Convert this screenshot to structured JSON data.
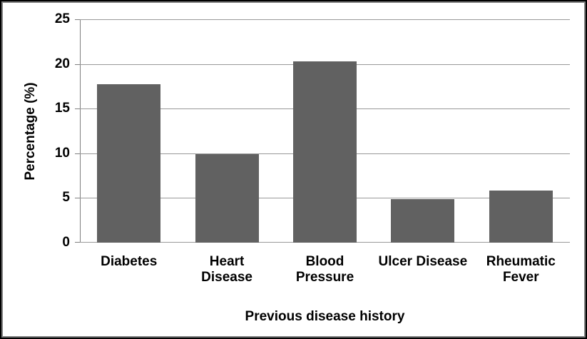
{
  "chart_data": {
    "type": "bar",
    "title": "",
    "categories": [
      "Diabetes",
      "Heart Disease",
      "Blood Pressure",
      "Ulcer Disease",
      "Rheumatic Fever"
    ],
    "values": [
      17.7,
      9.9,
      20.3,
      4.9,
      5.8
    ],
    "category_label_lines": [
      "Diabetes",
      "Heart\nDisease",
      "Blood\nPressure",
      "Ulcer Disease",
      "Rheumatic\nFever"
    ],
    "xlabel": "Previous disease history",
    "ylabel": "Percentage (%)",
    "ylim": [
      0,
      25
    ],
    "yticks": [
      0,
      5,
      10,
      15,
      20,
      25
    ],
    "grid": true,
    "legend": "none",
    "colors": {
      "bar_fill": "#616161",
      "gridline": "#999999",
      "axis_line": "#808080",
      "text": "#000000",
      "frame_outer_border": "#000000",
      "frame_inner_border": "#7f7f7f",
      "background": "#ffffff"
    }
  }
}
